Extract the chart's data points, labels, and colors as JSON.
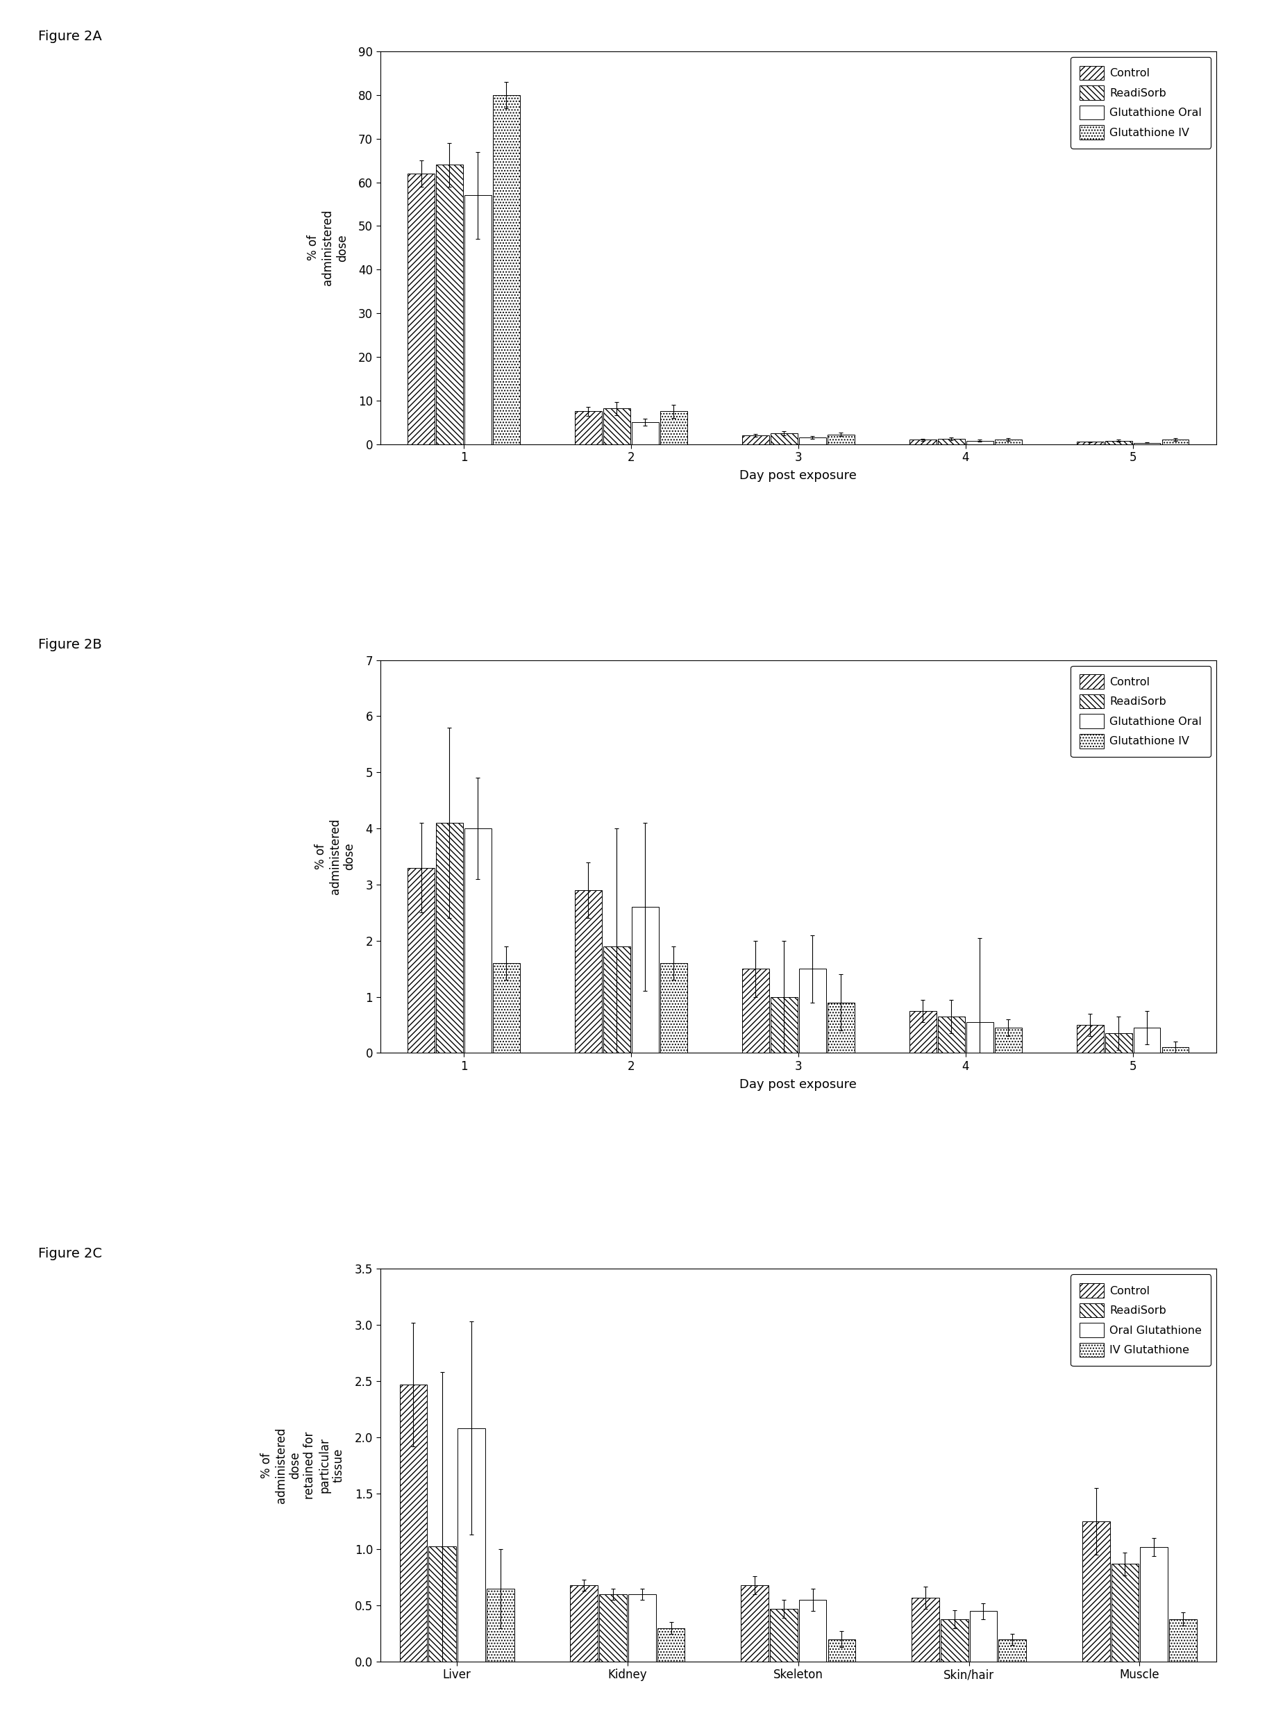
{
  "fig2A": {
    "title": "Figure 2A",
    "ylabel": "% of\nadministered\ndose",
    "xlabel": "Day post exposure",
    "ylim": [
      0,
      90
    ],
    "yticks": [
      0,
      10,
      20,
      30,
      40,
      50,
      60,
      70,
      80,
      90
    ],
    "days": [
      1,
      2,
      3,
      4,
      5
    ],
    "control": [
      62,
      7.5,
      2.0,
      1.0,
      0.5
    ],
    "readisorb": [
      64,
      8.2,
      2.5,
      1.2,
      0.8
    ],
    "glut_oral": [
      57,
      5.0,
      1.5,
      0.8,
      0.3
    ],
    "glut_iv": [
      80,
      7.5,
      2.2,
      1.1,
      1.0
    ],
    "control_err": [
      3.0,
      1.0,
      0.3,
      0.2,
      0.1
    ],
    "readisorb_err": [
      5.0,
      1.5,
      0.5,
      0.3,
      0.2
    ],
    "glut_oral_err": [
      10.0,
      0.8,
      0.3,
      0.2,
      0.1
    ],
    "glut_iv_err": [
      3.0,
      1.5,
      0.4,
      0.3,
      0.3
    ],
    "legend": [
      "Control",
      "ReadiSorb",
      "Glutathione Oral",
      "Glutathione IV"
    ]
  },
  "fig2B": {
    "title": "Figure 2B",
    "ylabel": "% of\nadministered\ndose",
    "xlabel": "Day post exposure",
    "ylim": [
      0,
      7
    ],
    "yticks": [
      0,
      1,
      2,
      3,
      4,
      5,
      6,
      7
    ],
    "days": [
      1,
      2,
      3,
      4,
      5
    ],
    "control": [
      3.3,
      2.9,
      1.5,
      0.75,
      0.5
    ],
    "readisorb": [
      4.1,
      1.9,
      1.0,
      0.65,
      0.35
    ],
    "glut_oral": [
      4.0,
      2.6,
      1.5,
      0.55,
      0.45
    ],
    "glut_iv": [
      1.6,
      1.6,
      0.9,
      0.45,
      0.1
    ],
    "control_err": [
      0.8,
      0.5,
      0.5,
      0.2,
      0.2
    ],
    "readisorb_err": [
      1.7,
      2.1,
      1.0,
      0.3,
      0.3
    ],
    "glut_oral_err": [
      0.9,
      1.5,
      0.6,
      1.5,
      0.3
    ],
    "glut_iv_err": [
      0.3,
      0.3,
      0.5,
      0.15,
      0.1
    ],
    "legend": [
      "Control",
      "ReadiSorb",
      "Glutathione Oral",
      "Glutathione IV"
    ]
  },
  "fig2C": {
    "title": "Figure 2C",
    "ylabel": "% of\nadministered\ndose\nretained for\nparticular\ntissue",
    "xlabel": "",
    "ylim": [
      0.0,
      3.5
    ],
    "yticks": [
      0.0,
      0.5,
      1.0,
      1.5,
      2.0,
      2.5,
      3.0,
      3.5
    ],
    "categories": [
      "Liver",
      "Kidney",
      "Skeleton",
      "Skin/hair",
      "Muscle"
    ],
    "control": [
      2.47,
      0.68,
      0.68,
      0.57,
      1.25
    ],
    "readisorb": [
      1.03,
      0.6,
      0.47,
      0.38,
      0.87
    ],
    "glut_oral": [
      2.08,
      0.6,
      0.55,
      0.45,
      1.02
    ],
    "glut_iv": [
      0.65,
      0.3,
      0.2,
      0.2,
      0.38
    ],
    "control_err": [
      0.55,
      0.05,
      0.08,
      0.1,
      0.3
    ],
    "readisorb_err": [
      1.55,
      0.05,
      0.08,
      0.08,
      0.1
    ],
    "glut_oral_err": [
      0.95,
      0.05,
      0.1,
      0.07,
      0.08
    ],
    "glut_iv_err": [
      0.35,
      0.05,
      0.07,
      0.05,
      0.06
    ],
    "legend": [
      "Control",
      "ReadiSorb",
      "Oral Glutathione",
      "IV Glutathione"
    ]
  },
  "hatch_control": "////",
  "hatch_readisorb": "\\\\\\\\",
  "hatch_oral": "",
  "hatch_iv": "....",
  "bar_width": 0.17,
  "background_color": "#ffffff",
  "bar_edge_color": "#000000",
  "bar_facecolor_control": "#ffffff",
  "bar_facecolor_readisorb": "#ffffff",
  "bar_facecolor_oral": "#ffffff",
  "bar_facecolor_iv": "#ffffff"
}
